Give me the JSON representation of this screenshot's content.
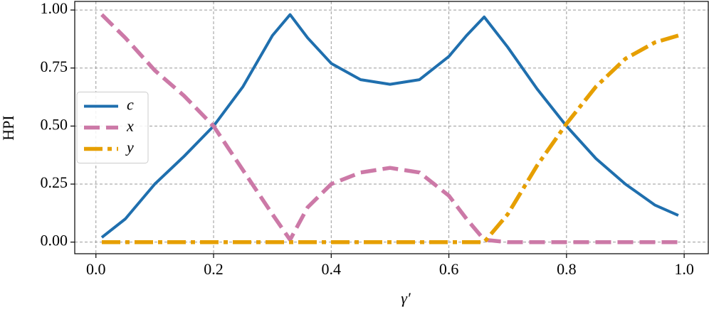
{
  "chart_data": {
    "type": "line",
    "xlabel": "γ′",
    "ylabel": "HPI",
    "x": [
      0.01,
      0.05,
      0.1,
      0.15,
      0.2,
      0.25,
      0.3,
      0.33,
      0.36,
      0.4,
      0.45,
      0.5,
      0.55,
      0.6,
      0.63,
      0.66,
      0.7,
      0.75,
      0.8,
      0.85,
      0.9,
      0.95,
      0.99
    ],
    "series": [
      {
        "name": "c",
        "color": "#1f6fae",
        "style": "solid",
        "values": [
          0.02,
          0.1,
          0.25,
          0.37,
          0.5,
          0.67,
          0.89,
          0.98,
          0.88,
          0.77,
          0.7,
          0.68,
          0.7,
          0.8,
          0.89,
          0.97,
          0.84,
          0.66,
          0.5,
          0.36,
          0.25,
          0.16,
          0.115
        ]
      },
      {
        "name": "x",
        "color": "#cc79a7",
        "style": "dashed",
        "values": [
          0.98,
          0.88,
          0.74,
          0.63,
          0.5,
          0.31,
          0.12,
          0.01,
          0.15,
          0.25,
          0.3,
          0.32,
          0.3,
          0.2,
          0.1,
          0.01,
          0,
          0,
          0,
          0,
          0,
          0,
          0
        ]
      },
      {
        "name": "y",
        "color": "#e69f00",
        "style": "dashdot",
        "values": [
          0,
          0,
          0,
          0,
          0,
          0,
          0,
          0,
          0,
          0,
          0,
          0,
          0,
          0,
          0,
          0,
          0.12,
          0.33,
          0.51,
          0.67,
          0.79,
          0.86,
          0.89
        ]
      }
    ],
    "xlim": [
      -0.036,
      1.041
    ],
    "ylim": [
      -0.05,
      1.037
    ],
    "xticks": [
      {
        "value": 0,
        "label": "0.0"
      },
      0.2,
      0.4,
      0.6,
      0.8,
      {
        "value": 1,
        "label": "1.0"
      }
    ],
    "yticks": [
      {
        "value": 0,
        "label": "0.00"
      },
      0.25,
      {
        "value": 0.5,
        "label": "0.50"
      },
      0.75,
      {
        "value": 1,
        "label": "1.00"
      }
    ],
    "grid": true,
    "legend": "center left"
  }
}
